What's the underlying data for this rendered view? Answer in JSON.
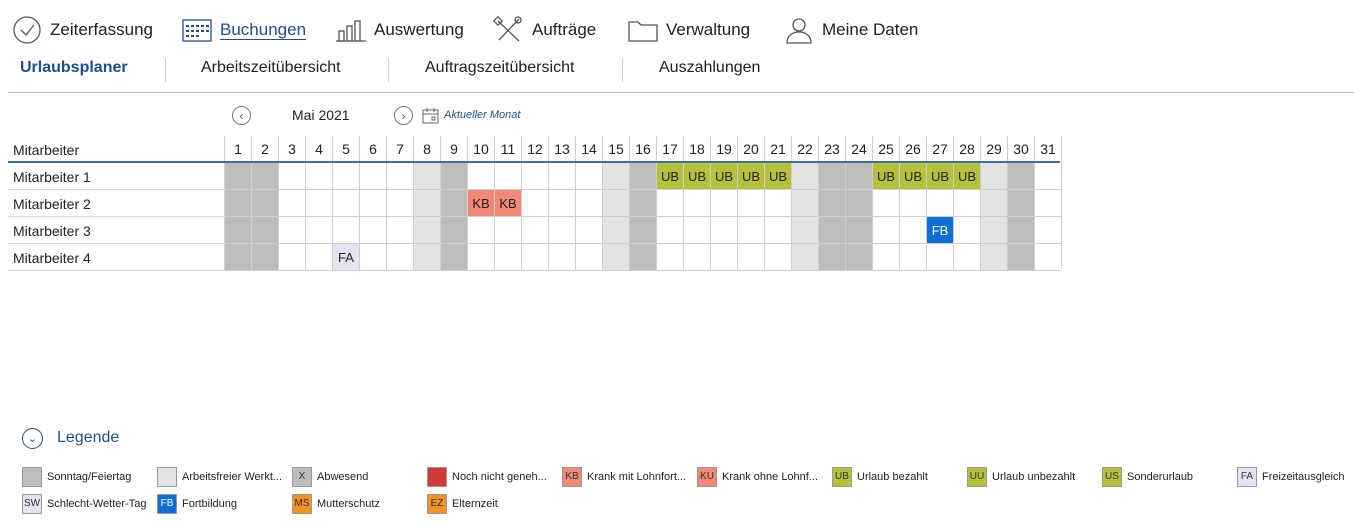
{
  "top_nav": [
    {
      "label": "Zeiterfassung",
      "icon": "clock-icon",
      "active": false
    },
    {
      "label": "Buchungen",
      "icon": "calendar-grid-icon",
      "active": true
    },
    {
      "label": "Auswertung",
      "icon": "bar-chart-icon",
      "active": false
    },
    {
      "label": "Aufträge",
      "icon": "tools-icon",
      "active": false
    },
    {
      "label": "Verwaltung",
      "icon": "folder-icon",
      "active": false
    },
    {
      "label": "Meine Daten",
      "icon": "user-icon",
      "active": false
    }
  ],
  "sub_nav": [
    {
      "label": "Urlaubsplaner",
      "active": true
    },
    {
      "label": "Arbeitszeitübersicht",
      "active": false
    },
    {
      "label": "Auftragszeitübersicht",
      "active": false
    },
    {
      "label": "Auszahlungen",
      "active": false
    }
  ],
  "month_nav": {
    "prev_icon": "chevron-left-circle-icon",
    "next_icon": "chevron-right-circle-icon",
    "month_label": "Mai 2021",
    "calendar_icon": "calendar-icon",
    "current_month_label": "Aktueller Monat"
  },
  "grid": {
    "header_label": "Mitarbeiter",
    "days": [
      1,
      2,
      3,
      4,
      5,
      6,
      7,
      8,
      9,
      10,
      11,
      12,
      13,
      14,
      15,
      16,
      17,
      18,
      19,
      20,
      21,
      22,
      23,
      24,
      25,
      26,
      27,
      28,
      29,
      30,
      31
    ],
    "sunday_holiday_days": [
      1,
      2,
      9,
      16,
      23,
      24,
      30
    ],
    "non_working_days": [
      8,
      15,
      22,
      29
    ],
    "employees": [
      {
        "name": "Mitarbeiter 1",
        "entries": {
          "17": "UB",
          "18": "UB",
          "19": "UB",
          "20": "UB",
          "21": "UB",
          "25": "UB",
          "26": "UB",
          "27": "UB",
          "28": "UB"
        }
      },
      {
        "name": "Mitarbeiter 2",
        "entries": {
          "10": "KB",
          "11": "KB"
        }
      },
      {
        "name": "Mitarbeiter 3",
        "entries": {
          "27": "FB"
        }
      },
      {
        "name": "Mitarbeiter 4",
        "entries": {
          "5": "FA"
        }
      }
    ]
  },
  "colors": {
    "sunday_holiday": "#bdbdbd",
    "non_working": "#e3e3e3",
    "UB": "#b5c13a",
    "KB": "#f08a76",
    "FB": "#0b6fd6",
    "FA": "#e6e2f3",
    "accent": "#1f4e8c"
  },
  "legend": {
    "toggle_icon": "chevron-down-circle-icon",
    "title": "Legende",
    "items": [
      {
        "code": "",
        "label": "Sonntag/Feiertag",
        "color": "#bdbdbd"
      },
      {
        "code": "",
        "label": "Arbeitsfreier Werkt...",
        "color": "#e3e3e3"
      },
      {
        "code": "X",
        "label": "Abwesend",
        "color": "#bdbdbd"
      },
      {
        "code": "",
        "label": "Noch nicht geneh...",
        "color": "#d23a35"
      },
      {
        "code": "KB",
        "label": "Krank mit Lohnfort...",
        "color": "#f08a76"
      },
      {
        "code": "KU",
        "label": "Krank ohne Lohnf...",
        "color": "#f08a76"
      },
      {
        "code": "UB",
        "label": "Urlaub bezahlt",
        "color": "#b5c13a"
      },
      {
        "code": "UU",
        "label": "Urlaub unbezahlt",
        "color": "#b5c13a"
      },
      {
        "code": "US",
        "label": "Sonderurlaub",
        "color": "#b5c13a"
      },
      {
        "code": "FA",
        "label": "Freizeitausgleich",
        "color": "#e6e2f3"
      },
      {
        "code": "SW",
        "label": "Schlecht-Wetter-Tag",
        "color": "#e6e2f3"
      },
      {
        "code": "FB",
        "label": "Fortbildung",
        "color": "#0b6fd6"
      },
      {
        "code": "MS",
        "label": "Mutterschutz",
        "color": "#f09226"
      },
      {
        "code": "EZ",
        "label": "Elternzeit",
        "color": "#f09226"
      }
    ]
  }
}
